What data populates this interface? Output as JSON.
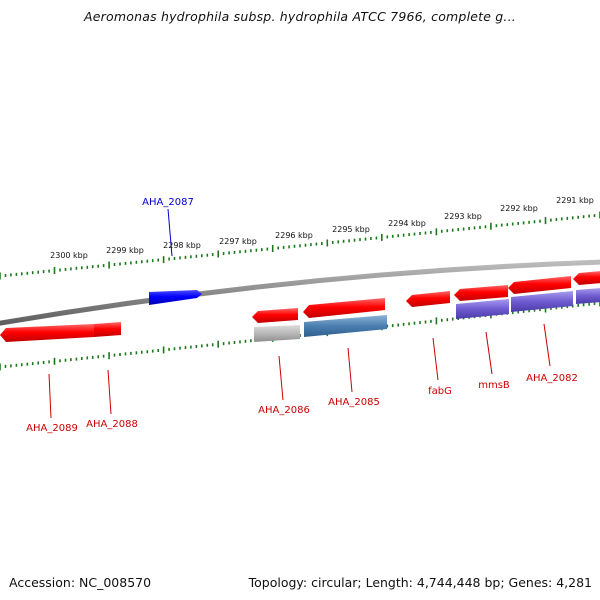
{
  "header": {
    "title": "Aeromonas hydrophila subsp. hydrophila ATCC 7966, complete g..."
  },
  "footer": {
    "accession": "Accession: NC_008570",
    "topology": "Topology: circular; Length: 4,744,448 bp; Genes: 4,281"
  },
  "ruler": {
    "labels": [
      "2300 kbp",
      "2299 kbp",
      "2298 kbp",
      "2297 kbp",
      "2296 kbp",
      "2295 kbp",
      "2294 kbp",
      "2293 kbp",
      "2292 kbp",
      "2291 kbp"
    ]
  },
  "genes": [
    {
      "label": "AHA_2087",
      "color": "#0000cc"
    },
    {
      "label": "AHA_2089",
      "color": "#cc0000"
    },
    {
      "label": "AHA_2088",
      "color": "#cc0000"
    },
    {
      "label": "AHA_2086",
      "color": "#cc0000"
    },
    {
      "label": "AHA_2085",
      "color": "#cc0000"
    },
    {
      "label": "fabG",
      "color": "#cc0000"
    },
    {
      "label": "mmsB",
      "color": "#cc0000"
    },
    {
      "label": "AHA_2082",
      "color": "#cc0000"
    }
  ],
  "colors": {
    "forward_gene": "#ff0000",
    "reverse_gene_blue": "#0000ff",
    "rna_gray": "#b8b8b8",
    "cds_steelblue": "#4a7fb0",
    "cds_purple": "#6f5bd0",
    "tick_green": "#1a7a1a",
    "backbone": "#888888"
  }
}
